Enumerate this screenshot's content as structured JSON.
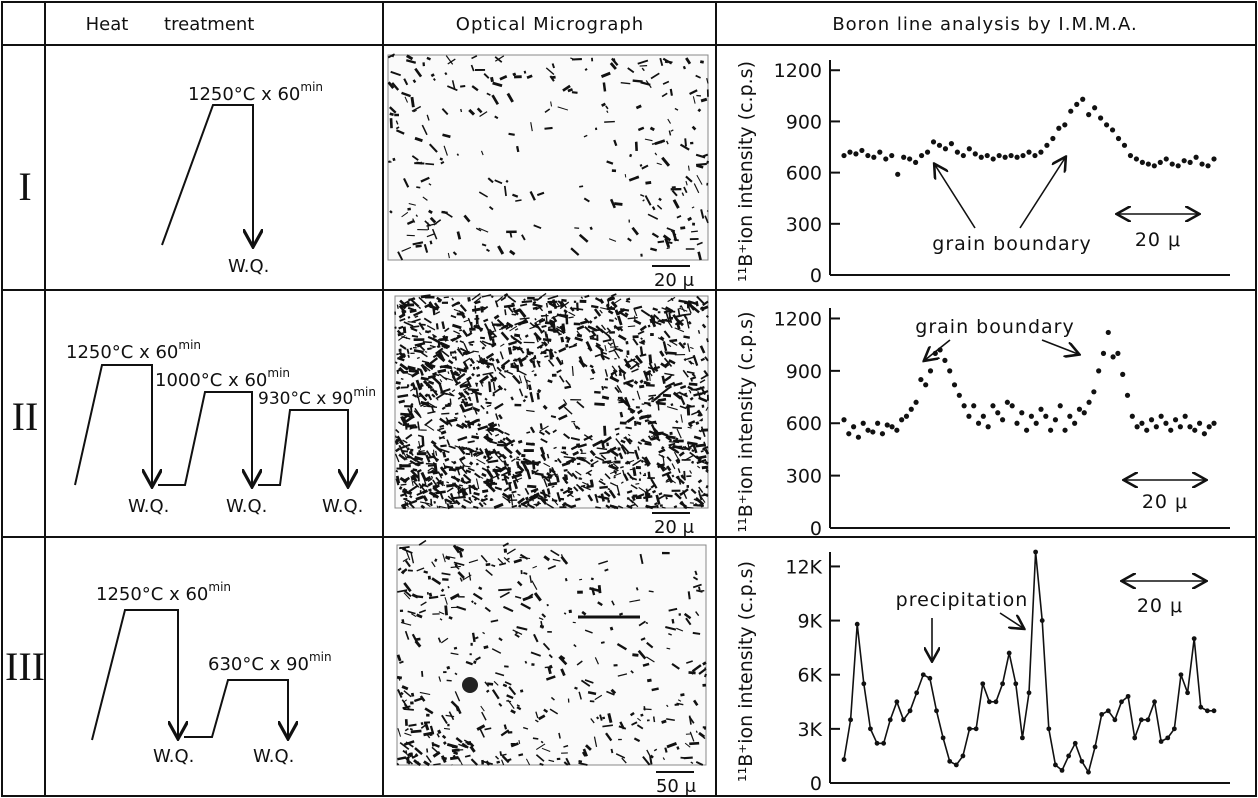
{
  "header": {
    "heat": "Heat treatment",
    "micrograph": "Optical Micrograph",
    "analysis": "Boron line analysis by I.M.M.A."
  },
  "rows": [
    {
      "label": "I",
      "heat_treatment": [
        {
          "text": "1250°C x 60",
          "sup": "min"
        }
      ],
      "quench": [
        "W.Q."
      ],
      "micrograph_scale": "20 μ"
    },
    {
      "label": "II",
      "heat_treatment": [
        {
          "text": "1250°C x 60",
          "sup": "min"
        },
        {
          "text": "1000°C x 60",
          "sup": "min"
        },
        {
          "text": "930°C x 90",
          "sup": "min"
        }
      ],
      "quench": [
        "W.Q.",
        "W.Q.",
        "W.Q."
      ],
      "micrograph_scale": "20 μ"
    },
    {
      "label": "III",
      "heat_treatment": [
        {
          "text": "1250°C x 60",
          "sup": "min"
        },
        {
          "text": "630°C x 90",
          "sup": "min"
        }
      ],
      "quench": [
        "W.Q.",
        "W.Q."
      ],
      "micrograph_scale": "50 μ"
    }
  ],
  "chart_data": [
    {
      "type": "dot",
      "ylabel": "¹¹B⁺ion intensity (c.p.s)",
      "color": "#111111",
      "ylim": [
        0,
        1260
      ],
      "yticks": [
        0,
        300,
        600,
        900,
        1200
      ],
      "annotations": [
        "grain boundary",
        "20 μ"
      ],
      "values": [
        700,
        720,
        710,
        730,
        700,
        690,
        720,
        680,
        700,
        590,
        690,
        680,
        660,
        700,
        720,
        780,
        760,
        740,
        770,
        720,
        700,
        740,
        710,
        690,
        700,
        680,
        700,
        690,
        700,
        690,
        700,
        720,
        700,
        720,
        760,
        800,
        860,
        880,
        960,
        1000,
        1030,
        940,
        980,
        920,
        880,
        850,
        800,
        760,
        700,
        680,
        660,
        650,
        640,
        660,
        680,
        650,
        640,
        670,
        660,
        690,
        650,
        640,
        680
      ]
    },
    {
      "type": "dot",
      "ylabel": "¹¹B⁺ion intensity (c.p.s)",
      "color": "#111111",
      "ylim": [
        0,
        1260
      ],
      "yticks": [
        0,
        300,
        600,
        900,
        1200
      ],
      "annotations": [
        "grain boundary",
        "20 μ"
      ],
      "values": [
        620,
        540,
        580,
        520,
        600,
        560,
        550,
        600,
        540,
        590,
        580,
        560,
        620,
        640,
        680,
        720,
        850,
        820,
        900,
        1000,
        1020,
        960,
        900,
        820,
        760,
        700,
        640,
        700,
        600,
        640,
        580,
        700,
        660,
        620,
        720,
        700,
        600,
        660,
        560,
        640,
        600,
        680,
        640,
        560,
        620,
        700,
        560,
        640,
        600,
        680,
        660,
        720,
        780,
        900,
        1000,
        1120,
        980,
        1000,
        880,
        760,
        640,
        580,
        600,
        560,
        620,
        580,
        640,
        600,
        560,
        620,
        580,
        640,
        580,
        560,
        600,
        540,
        580,
        600
      ]
    },
    {
      "type": "line",
      "ylabel": "¹¹B⁺ion intensity (c.p.s)",
      "color": "#111111",
      "ylim": [
        0,
        12800
      ],
      "yticks": [
        0,
        {
          "value": 3000,
          "label": "3K"
        },
        {
          "value": 6000,
          "label": "6K"
        },
        {
          "value": 9000,
          "label": "9K"
        },
        {
          "value": 12000,
          "label": "12K"
        }
      ],
      "annotations": [
        "precipitation",
        "20 μ"
      ],
      "values": [
        1300,
        3500,
        8800,
        5500,
        3000,
        2200,
        2200,
        3500,
        4500,
        3500,
        4000,
        5000,
        6000,
        5800,
        4000,
        2500,
        1200,
        1000,
        1500,
        3000,
        3000,
        5500,
        4500,
        4500,
        5500,
        7200,
        5500,
        2500,
        5000,
        12800,
        9000,
        3000,
        1000,
        700,
        1500,
        2200,
        1200,
        600,
        2000,
        3800,
        4000,
        3500,
        4500,
        4800,
        2500,
        3500,
        3500,
        4500,
        2300,
        2500,
        3000,
        6000,
        5000,
        8000,
        4200,
        4000,
        4000
      ]
    }
  ]
}
